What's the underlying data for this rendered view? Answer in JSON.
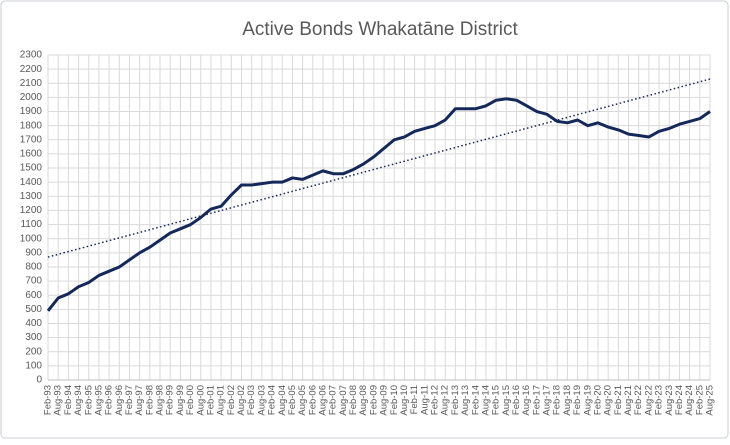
{
  "chart_data": {
    "type": "line",
    "title": "Active Bonds Whakatāne District",
    "categories": [
      "Feb-93",
      "Aug-93",
      "Feb-94",
      "Aug-94",
      "Feb-95",
      "Aug-95",
      "Feb-96",
      "Aug-96",
      "Feb-97",
      "Aug-97",
      "Feb-98",
      "Aug-98",
      "Feb-99",
      "Aug-99",
      "Feb-00",
      "Aug-00",
      "Feb-01",
      "Aug-01",
      "Feb-02",
      "Aug-02",
      "Feb-03",
      "Aug-03",
      "Feb-04",
      "Aug-04",
      "Feb-05",
      "Aug-05",
      "Feb-06",
      "Aug-06",
      "Feb-07",
      "Aug-07",
      "Feb-08",
      "Aug-08",
      "Feb-09",
      "Aug-09",
      "Feb-10",
      "Aug-10",
      "Feb-11",
      "Aug-11",
      "Feb-12",
      "Aug-12",
      "Feb-13",
      "Aug-13",
      "Feb-14",
      "Aug-14",
      "Feb-15",
      "Aug-15",
      "Feb-16",
      "Aug-16",
      "Feb-17",
      "Aug-17",
      "Feb-18",
      "Aug-18",
      "Feb-19",
      "Aug-19",
      "Feb-20",
      "Aug-20",
      "Feb-21",
      "Aug-21",
      "Feb-22",
      "Aug-22",
      "Feb-23",
      "Aug-23",
      "Feb-24",
      "Aug-24",
      "Feb-25",
      "Aug-25"
    ],
    "values": [
      490,
      580,
      610,
      660,
      690,
      740,
      770,
      800,
      850,
      900,
      940,
      990,
      1040,
      1070,
      1100,
      1150,
      1210,
      1230,
      1310,
      1380,
      1380,
      1390,
      1400,
      1400,
      1430,
      1420,
      1450,
      1480,
      1460,
      1460,
      1490,
      1530,
      1580,
      1640,
      1700,
      1720,
      1760,
      1780,
      1800,
      1840,
      1920,
      1920,
      1920,
      1940,
      1980,
      1990,
      1980,
      1940,
      1900,
      1880,
      1830,
      1820,
      1840,
      1800,
      1820,
      1790,
      1770,
      1740,
      1730,
      1720,
      1760,
      1780,
      1810,
      1830,
      1850,
      1900
    ],
    "color": "#14285a",
    "trendline": {
      "values": [
        870,
        2130
      ],
      "color": "#14285a",
      "style": "dotted"
    },
    "ylim": [
      0,
      2300
    ],
    "yticks": [
      0,
      100,
      200,
      300,
      400,
      500,
      600,
      700,
      800,
      900,
      1000,
      1100,
      1200,
      1300,
      1400,
      1500,
      1600,
      1700,
      1800,
      1900,
      2000,
      2100,
      2200,
      2300
    ],
    "grid": true
  }
}
